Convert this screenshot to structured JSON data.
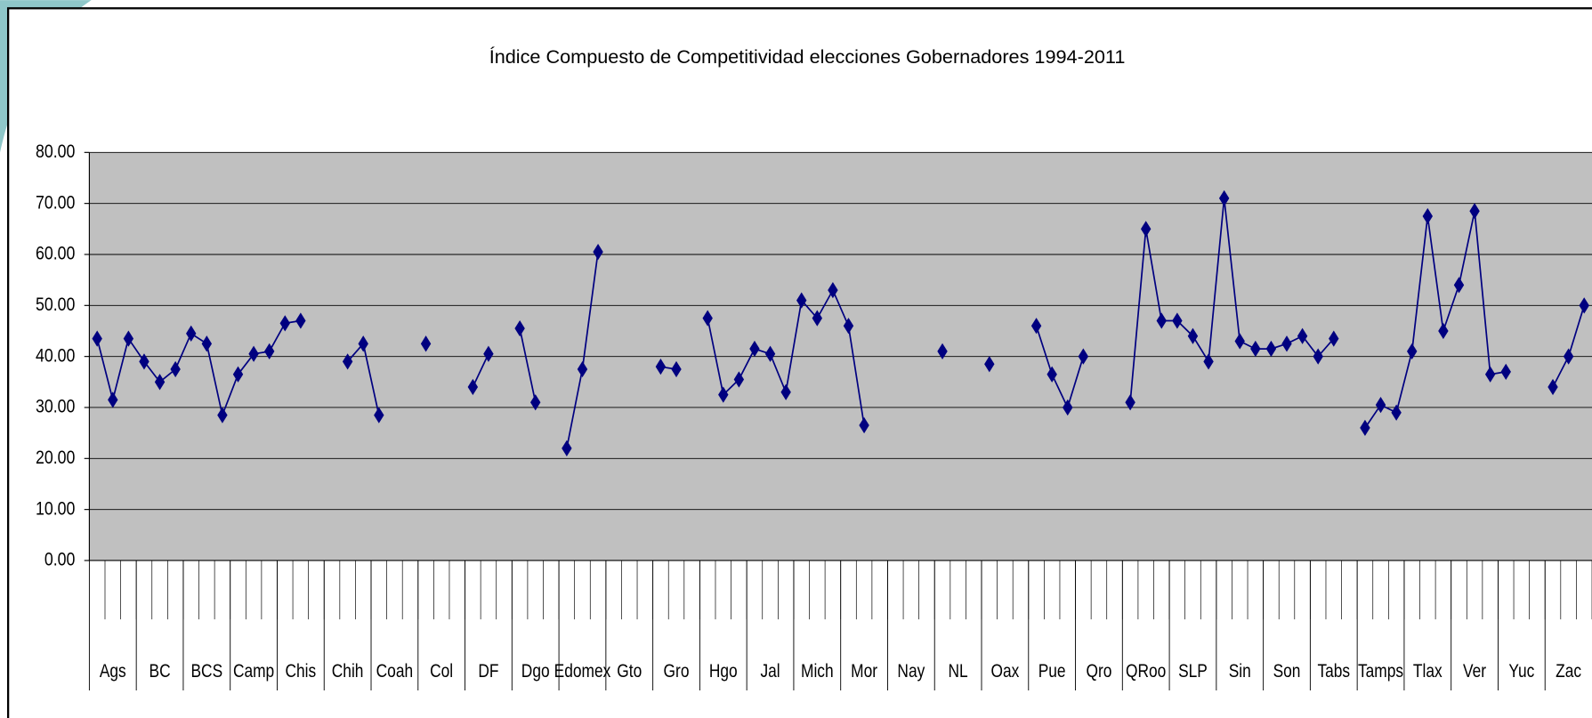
{
  "chart_data": {
    "type": "line",
    "title": "Índice Compuesto de Competitividad elecciones Gobernadores 1994-2011",
    "ylim": [
      0,
      80
    ],
    "yticks": [
      {
        "value": 0,
        "label": "0.00"
      },
      {
        "value": 10,
        "label": "10.00"
      },
      {
        "value": 20,
        "label": "20.00"
      },
      {
        "value": 30,
        "label": "30.00"
      },
      {
        "value": 40,
        "label": "40.00"
      },
      {
        "value": 50,
        "label": "50.00"
      },
      {
        "value": 60,
        "label": "60.00"
      },
      {
        "value": 70,
        "label": "70.00"
      },
      {
        "value": 80,
        "label": "80.00"
      }
    ],
    "grid": true,
    "color": "#000080",
    "plot_background": "#c0c0c0",
    "groups": [
      {
        "label": "Ags",
        "values": [
          43.5,
          31.5,
          43.5
        ]
      },
      {
        "label": "BC",
        "values": [
          39,
          35,
          37.5
        ]
      },
      {
        "label": "BCS",
        "values": [
          44.5,
          42.5,
          28.5
        ]
      },
      {
        "label": "Camp",
        "values": [
          36.5,
          40.5,
          41
        ]
      },
      {
        "label": "Chis",
        "values": [
          46.5,
          47,
          null
        ]
      },
      {
        "label": "Chih",
        "values": [
          null,
          39,
          42.5
        ]
      },
      {
        "label": "Coah",
        "values": [
          28.5,
          null,
          null
        ]
      },
      {
        "label": "Col",
        "values": [
          42.5,
          null,
          null
        ]
      },
      {
        "label": "DF",
        "values": [
          34,
          40.5,
          null
        ]
      },
      {
        "label": "Dgo",
        "values": [
          45.5,
          31,
          null
        ]
      },
      {
        "label": "Edomex",
        "values": [
          22,
          37.5,
          60.5
        ]
      },
      {
        "label": "Gto",
        "values": [
          null,
          null,
          null
        ]
      },
      {
        "label": "Gro",
        "values": [
          38,
          37.5,
          null
        ]
      },
      {
        "label": "Hgo",
        "values": [
          47.5,
          32.5,
          35.5
        ]
      },
      {
        "label": "Jal",
        "values": [
          41.5,
          40.5,
          33
        ]
      },
      {
        "label": "Mich",
        "values": [
          51,
          47.5,
          53
        ]
      },
      {
        "label": "Mor",
        "values": [
          46,
          26.5,
          null
        ]
      },
      {
        "label": "Nay",
        "values": [
          null,
          null,
          null
        ]
      },
      {
        "label": "NL",
        "values": [
          41,
          null,
          null
        ]
      },
      {
        "label": "Oax",
        "values": [
          38.5,
          null,
          null
        ]
      },
      {
        "label": "Pue",
        "values": [
          46,
          36.5,
          30
        ]
      },
      {
        "label": "Qro",
        "values": [
          40,
          null,
          null
        ]
      },
      {
        "label": "QRoo",
        "values": [
          31,
          65,
          47
        ]
      },
      {
        "label": "SLP",
        "values": [
          47,
          44,
          39
        ]
      },
      {
        "label": "Sin",
        "values": [
          71,
          43,
          41.5
        ]
      },
      {
        "label": "Son",
        "values": [
          41.5,
          42.5,
          44
        ]
      },
      {
        "label": "Tabs",
        "values": [
          40,
          43.5,
          null
        ]
      },
      {
        "label": "Tamps",
        "values": [
          26,
          30.5,
          29
        ]
      },
      {
        "label": "Tlax",
        "values": [
          41,
          67.5,
          45
        ]
      },
      {
        "label": "Ver",
        "values": [
          54,
          68.5,
          36.5
        ]
      },
      {
        "label": "Yuc",
        "values": [
          37,
          null,
          null
        ]
      },
      {
        "label": "Zac",
        "values": [
          34,
          40,
          50
        ]
      }
    ]
  }
}
